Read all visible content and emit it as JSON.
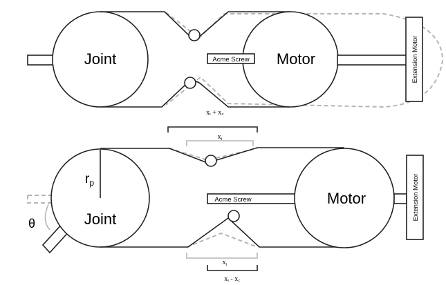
{
  "top": {
    "joint_label": "Joint",
    "motor_label": "Motor",
    "screw_label": "Acme Screw",
    "extension_label": "Extension Motor",
    "dimension_label": "xᵢ + x꜀"
  },
  "bottom": {
    "joint_label": "Joint",
    "motor_label": "Motor",
    "screw_label": "Acme Screw",
    "extension_label": "Extension Motor",
    "radius_label": "r",
    "radius_sub": "p",
    "angle_label": "θ",
    "top_dimension_label": "x",
    "top_dimension_sub": "i",
    "bottom_dimension_label": "x",
    "bottom_dimension_sub": "i",
    "bottom_brace_label": "xᵢ - x꜀"
  },
  "colors": {
    "line": "#222222",
    "ghost": "#b5b5b5"
  }
}
